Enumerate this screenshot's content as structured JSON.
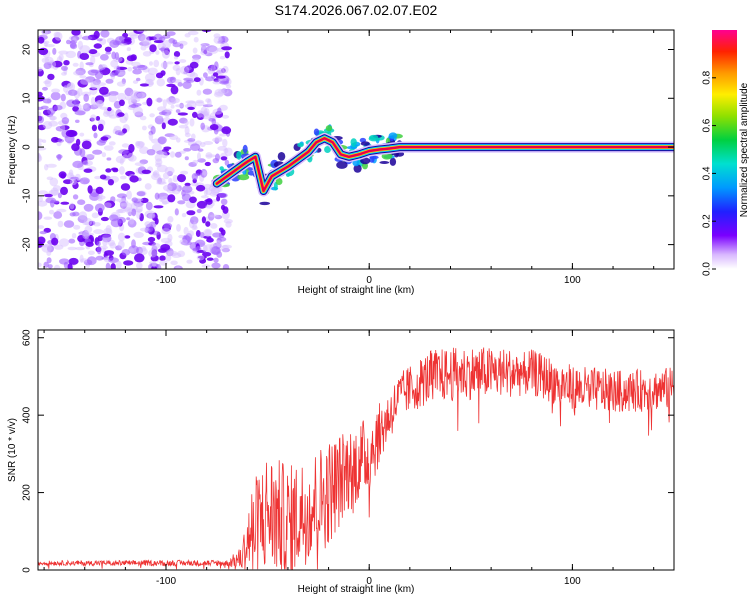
{
  "title": "S174.2026.067.02.07.E02",
  "colors": {
    "snr_line": "#ee3333",
    "frame": "#000000",
    "noise": "#7a00ff",
    "band_core": "#e8004a",
    "band_edge": "#1a0099"
  },
  "chart_data": [
    {
      "type": "heatmap",
      "name": "spectrogram",
      "xlabel": "Height of straight line (km)",
      "ylabel": "Frequency (Hz)",
      "xlim": [
        -163,
        150
      ],
      "ylim": [
        -25,
        24
      ],
      "xticks": [
        -100,
        0,
        100
      ],
      "xtick_labels": [
        "-100",
        "0",
        "100"
      ],
      "yticks": [
        -20,
        -10,
        0,
        10,
        20
      ],
      "ytick_labels": [
        "-20",
        "-10",
        "0",
        "10",
        "20"
      ],
      "colorbar": {
        "label": "Normalized spectral amplitude",
        "range": [
          0,
          1
        ],
        "ticks": [
          0.0,
          0.2,
          0.4,
          0.6,
          0.8
        ],
        "tick_labels": [
          "0.0",
          "0.2",
          "0.4",
          "0.6",
          "0.8"
        ],
        "colormap": "rainbow"
      },
      "noise_region_km": [
        -163,
        -75
      ],
      "signal_trace": [
        {
          "x": -75,
          "y": -7.5
        },
        {
          "x": -70,
          "y": -6
        },
        {
          "x": -65,
          "y": -4.5
        },
        {
          "x": -60,
          "y": -3
        },
        {
          "x": -56,
          "y": -2
        },
        {
          "x": -52,
          "y": -9
        },
        {
          "x": -48,
          "y": -6
        },
        {
          "x": -44,
          "y": -5
        },
        {
          "x": -40,
          "y": -4
        },
        {
          "x": -35,
          "y": -2.5
        },
        {
          "x": -30,
          "y": -1
        },
        {
          "x": -26,
          "y": 1
        },
        {
          "x": -22,
          "y": 1.8
        },
        {
          "x": -18,
          "y": 1
        },
        {
          "x": -14,
          "y": -1.5
        },
        {
          "x": -10,
          "y": -2
        },
        {
          "x": -5,
          "y": -1.5
        },
        {
          "x": 0,
          "y": -0.8
        },
        {
          "x": 5,
          "y": -0.5
        },
        {
          "x": 10,
          "y": -0.3
        },
        {
          "x": 15,
          "y": 0
        },
        {
          "x": 30,
          "y": 0
        },
        {
          "x": 60,
          "y": 0
        },
        {
          "x": 100,
          "y": 0
        },
        {
          "x": 150,
          "y": 0
        }
      ]
    },
    {
      "type": "line",
      "name": "snr",
      "xlabel": "Height of straight line (km)",
      "ylabel": "SNR (10 * v/v)",
      "xlim": [
        -163,
        150
      ],
      "ylim": [
        0,
        620
      ],
      "xticks": [
        -100,
        0,
        100
      ],
      "xtick_labels": [
        "-100",
        "0",
        "100"
      ],
      "yticks": [
        0,
        200,
        400,
        600
      ],
      "ytick_labels": [
        "0",
        "200",
        "400",
        "600"
      ],
      "envelope": [
        {
          "x": -163,
          "mean": 18,
          "amp": 6
        },
        {
          "x": -70,
          "mean": 18,
          "amp": 8
        },
        {
          "x": -63,
          "mean": 30,
          "amp": 30
        },
        {
          "x": -58,
          "mean": 100,
          "amp": 120
        },
        {
          "x": -50,
          "mean": 150,
          "amp": 160
        },
        {
          "x": -40,
          "mean": 120,
          "amp": 150
        },
        {
          "x": -30,
          "mean": 160,
          "amp": 140
        },
        {
          "x": -20,
          "mean": 200,
          "amp": 140
        },
        {
          "x": -10,
          "mean": 260,
          "amp": 110
        },
        {
          "x": 0,
          "mean": 300,
          "amp": 100
        },
        {
          "x": 8,
          "mean": 380,
          "amp": 70
        },
        {
          "x": 15,
          "mean": 450,
          "amp": 60
        },
        {
          "x": 30,
          "mean": 500,
          "amp": 70
        },
        {
          "x": 50,
          "mean": 510,
          "amp": 70
        },
        {
          "x": 80,
          "mean": 510,
          "amp": 60
        },
        {
          "x": 100,
          "mean": 470,
          "amp": 60
        },
        {
          "x": 125,
          "mean": 460,
          "amp": 55
        },
        {
          "x": 150,
          "mean": 470,
          "amp": 55
        }
      ]
    }
  ]
}
